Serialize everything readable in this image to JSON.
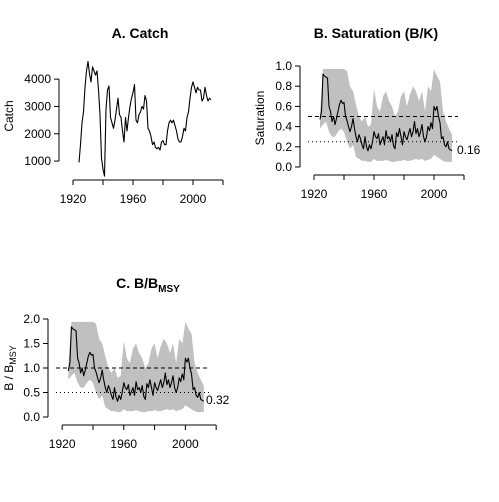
{
  "chart_data": [
    {
      "id": "A",
      "type": "line",
      "title": "A. Catch",
      "xlabel": "",
      "ylabel": "Catch",
      "xlim": [
        1916,
        2016
      ],
      "ylim": [
        600,
        4700
      ],
      "xticks": [
        1920,
        1960,
        2000
      ],
      "yticks": [
        1000,
        2000,
        3000,
        4000
      ],
      "series": [
        {
          "x": [
            1924,
            1925,
            1926,
            1927,
            1928,
            1929,
            1930,
            1931,
            1932,
            1933,
            1934,
            1935,
            1936,
            1937,
            1938,
            1939,
            1940,
            1941,
            1942,
            1943,
            1944,
            1945,
            1946,
            1947,
            1948,
            1949,
            1950,
            1951,
            1952,
            1953,
            1954,
            1955,
            1956,
            1957,
            1958,
            1959,
            1960,
            1961,
            1962,
            1963,
            1964,
            1965,
            1966,
            1967,
            1968,
            1969,
            1970,
            1971,
            1972,
            1973,
            1974,
            1975,
            1976,
            1977,
            1978,
            1979,
            1980,
            1981,
            1982,
            1983,
            1984,
            1985,
            1986,
            1987,
            1988,
            1989,
            1990,
            1991,
            1992,
            1993,
            1994,
            1995,
            1996,
            1997,
            1998,
            1999,
            2000,
            2001,
            2002,
            2003,
            2004,
            2005,
            2006,
            2007,
            2008,
            2009,
            2010,
            2011,
            2012
          ],
          "values": [
            950,
            1600,
            2400,
            2800,
            3700,
            4300,
            4650,
            4200,
            3900,
            4450,
            4300,
            4150,
            4300,
            3600,
            2700,
            1100,
            700,
            450,
            2900,
            3600,
            3750,
            2600,
            2400,
            2200,
            2500,
            2900,
            3300,
            2700,
            2600,
            2100,
            1700,
            2600,
            2100,
            2600,
            3000,
            3300,
            3500,
            3800,
            2500,
            2400,
            2700,
            2800,
            3000,
            2900,
            3400,
            3200,
            2200,
            2100,
            1900,
            1600,
            1700,
            1500,
            1450,
            1500,
            1400,
            1700,
            1750,
            1600,
            1600,
            2100,
            2400,
            2500,
            2400,
            2500,
            2300,
            2100,
            1800,
            1700,
            1700,
            1900,
            2200,
            2100,
            2600,
            2800,
            3300,
            3700,
            3900,
            3700,
            3500,
            3700,
            3600,
            3600,
            3200,
            3300,
            3700,
            3400,
            3200,
            3300,
            3250
          ]
        }
      ]
    },
    {
      "id": "B",
      "type": "line",
      "title": "B. Saturation (B/K)",
      "xlabel": "",
      "ylabel": "Saturation",
      "xlim": [
        1916,
        2016
      ],
      "ylim": [
        0,
        1
      ],
      "xticks": [
        1920,
        1960,
        2000
      ],
      "yticks": [
        0.0,
        0.2,
        0.4,
        0.6,
        0.8,
        1.0
      ],
      "hlines": [
        {
          "y": 0.5,
          "style": "dashed"
        },
        {
          "y": 0.25,
          "style": "dotted"
        }
      ],
      "annotation": "0.16",
      "series": [
        {
          "x": [
            1924,
            1925,
            1926,
            1927,
            1928,
            1929,
            1930,
            1931,
            1932,
            1933,
            1934,
            1935,
            1936,
            1937,
            1938,
            1939,
            1940,
            1941,
            1942,
            1943,
            1944,
            1945,
            1946,
            1947,
            1948,
            1949,
            1950,
            1951,
            1952,
            1953,
            1954,
            1955,
            1956,
            1957,
            1958,
            1959,
            1960,
            1961,
            1962,
            1963,
            1964,
            1965,
            1966,
            1967,
            1968,
            1969,
            1970,
            1971,
            1972,
            1973,
            1974,
            1975,
            1976,
            1977,
            1978,
            1979,
            1980,
            1981,
            1982,
            1983,
            1984,
            1985,
            1986,
            1987,
            1988,
            1989,
            1990,
            1991,
            1992,
            1993,
            1994,
            1995,
            1996,
            1997,
            1998,
            1999,
            2000,
            2001,
            2002,
            2003,
            2004,
            2005,
            2006,
            2007,
            2008,
            2009,
            2010,
            2011,
            2012
          ],
          "values": [
            0.47,
            0.55,
            0.92,
            0.9,
            0.89,
            0.88,
            0.6,
            0.55,
            0.45,
            0.5,
            0.42,
            0.48,
            0.55,
            0.62,
            0.66,
            0.63,
            0.64,
            0.5,
            0.46,
            0.4,
            0.35,
            0.4,
            0.48,
            0.38,
            0.3,
            0.25,
            0.32,
            0.28,
            0.22,
            0.18,
            0.3,
            0.2,
            0.16,
            0.22,
            0.18,
            0.25,
            0.35,
            0.3,
            0.28,
            0.33,
            0.22,
            0.26,
            0.3,
            0.22,
            0.36,
            0.28,
            0.3,
            0.25,
            0.32,
            0.21,
            0.18,
            0.34,
            0.3,
            0.38,
            0.3,
            0.22,
            0.35,
            0.3,
            0.27,
            0.33,
            0.38,
            0.3,
            0.35,
            0.45,
            0.33,
            0.38,
            0.3,
            0.35,
            0.42,
            0.3,
            0.25,
            0.3,
            0.4,
            0.36,
            0.44,
            0.38,
            0.6,
            0.56,
            0.6,
            0.5,
            0.44,
            0.28,
            0.3,
            0.22,
            0.2,
            0.25,
            0.18,
            0.17,
            0.16
          ]
        }
      ],
      "band": {
        "x": [
          1924,
          1926,
          1928,
          1930,
          1932,
          1934,
          1936,
          1938,
          1940,
          1942,
          1944,
          1946,
          1948,
          1950,
          1952,
          1954,
          1956,
          1958,
          1960,
          1962,
          1964,
          1966,
          1968,
          1970,
          1972,
          1974,
          1976,
          1978,
          1980,
          1982,
          1984,
          1986,
          1988,
          1990,
          1992,
          1994,
          1996,
          1998,
          2000,
          2002,
          2004,
          2006,
          2008,
          2010,
          2012
        ],
        "lower": [
          0.38,
          0.42,
          0.45,
          0.35,
          0.3,
          0.3,
          0.35,
          0.38,
          0.35,
          0.25,
          0.18,
          0.22,
          0.1,
          0.08,
          0.06,
          0.06,
          0.05,
          0.05,
          0.08,
          0.06,
          0.06,
          0.06,
          0.07,
          0.06,
          0.05,
          0.05,
          0.06,
          0.06,
          0.07,
          0.06,
          0.06,
          0.07,
          0.08,
          0.07,
          0.08,
          0.06,
          0.07,
          0.08,
          0.12,
          0.1,
          0.08,
          0.06,
          0.05,
          0.05,
          0.05
        ],
        "upper": [
          0.52,
          0.97,
          0.97,
          0.97,
          0.97,
          0.97,
          0.97,
          0.97,
          0.97,
          0.95,
          0.8,
          0.75,
          0.62,
          0.5,
          0.45,
          0.5,
          0.4,
          0.42,
          0.78,
          0.6,
          0.55,
          0.7,
          0.75,
          0.65,
          0.6,
          0.5,
          0.55,
          0.7,
          0.75,
          0.6,
          0.72,
          0.8,
          0.75,
          0.65,
          0.75,
          0.55,
          0.8,
          0.75,
          0.97,
          0.9,
          0.85,
          0.55,
          0.45,
          0.38,
          0.32
        ]
      }
    },
    {
      "id": "C",
      "type": "line",
      "title_main": "C. B/B",
      "title_sub": "MSY",
      "xlabel": "",
      "ylabel_main": "B / B",
      "ylabel_sub": "MSY",
      "xlim": [
        1916,
        2016
      ],
      "ylim": [
        0,
        2
      ],
      "xticks": [
        1920,
        1960,
        2000
      ],
      "yticks": [
        0.0,
        0.5,
        1.0,
        1.5,
        2.0
      ],
      "hlines": [
        {
          "y": 1.0,
          "style": "dashed"
        },
        {
          "y": 0.5,
          "style": "dotted"
        }
      ],
      "annotation": "0.32",
      "series": [
        {
          "x": [
            1924,
            1925,
            1926,
            1927,
            1928,
            1929,
            1930,
            1931,
            1932,
            1933,
            1934,
            1935,
            1936,
            1937,
            1938,
            1939,
            1940,
            1941,
            1942,
            1943,
            1944,
            1945,
            1946,
            1947,
            1948,
            1949,
            1950,
            1951,
            1952,
            1953,
            1954,
            1955,
            1956,
            1957,
            1958,
            1959,
            1960,
            1961,
            1962,
            1963,
            1964,
            1965,
            1966,
            1967,
            1968,
            1969,
            1970,
            1971,
            1972,
            1973,
            1974,
            1975,
            1976,
            1977,
            1978,
            1979,
            1980,
            1981,
            1982,
            1983,
            1984,
            1985,
            1986,
            1987,
            1988,
            1989,
            1990,
            1991,
            1992,
            1993,
            1994,
            1995,
            1996,
            1997,
            1998,
            1999,
            2000,
            2001,
            2002,
            2003,
            2004,
            2005,
            2006,
            2007,
            2008,
            2009,
            2010,
            2011,
            2012
          ],
          "values": [
            0.94,
            1.1,
            1.84,
            1.8,
            1.78,
            1.76,
            1.2,
            1.1,
            0.9,
            1.0,
            0.84,
            0.96,
            1.1,
            1.24,
            1.32,
            1.26,
            1.28,
            1.0,
            0.92,
            0.8,
            0.7,
            0.8,
            0.96,
            0.76,
            0.6,
            0.5,
            0.64,
            0.56,
            0.44,
            0.36,
            0.6,
            0.4,
            0.32,
            0.44,
            0.36,
            0.5,
            0.7,
            0.6,
            0.56,
            0.66,
            0.44,
            0.52,
            0.6,
            0.44,
            0.72,
            0.56,
            0.6,
            0.5,
            0.64,
            0.42,
            0.36,
            0.68,
            0.6,
            0.76,
            0.6,
            0.44,
            0.7,
            0.6,
            0.54,
            0.66,
            0.76,
            0.6,
            0.7,
            0.9,
            0.66,
            0.76,
            0.6,
            0.7,
            0.84,
            0.6,
            0.5,
            0.6,
            0.8,
            0.72,
            0.88,
            0.76,
            1.2,
            1.12,
            1.2,
            1.0,
            0.88,
            0.56,
            0.6,
            0.44,
            0.4,
            0.5,
            0.36,
            0.34,
            0.32
          ]
        }
      ],
      "band": {
        "x": [
          1924,
          1926,
          1928,
          1930,
          1932,
          1934,
          1936,
          1938,
          1940,
          1942,
          1944,
          1946,
          1948,
          1950,
          1952,
          1954,
          1956,
          1958,
          1960,
          1962,
          1964,
          1966,
          1968,
          1970,
          1972,
          1974,
          1976,
          1978,
          1980,
          1982,
          1984,
          1986,
          1988,
          1990,
          1992,
          1994,
          1996,
          1998,
          2000,
          2002,
          2004,
          2006,
          2008,
          2010,
          2012
        ],
        "lower": [
          0.76,
          0.84,
          0.9,
          0.7,
          0.6,
          0.6,
          0.7,
          0.76,
          0.7,
          0.5,
          0.36,
          0.44,
          0.2,
          0.16,
          0.12,
          0.12,
          0.1,
          0.1,
          0.16,
          0.12,
          0.12,
          0.12,
          0.14,
          0.12,
          0.1,
          0.1,
          0.12,
          0.12,
          0.14,
          0.12,
          0.12,
          0.14,
          0.16,
          0.14,
          0.16,
          0.12,
          0.14,
          0.16,
          0.24,
          0.2,
          0.16,
          0.12,
          0.1,
          0.1,
          0.1
        ],
        "upper": [
          1.04,
          1.94,
          1.94,
          1.94,
          1.94,
          1.94,
          1.94,
          1.94,
          1.94,
          1.9,
          1.6,
          1.5,
          1.24,
          1.0,
          0.9,
          1.0,
          0.8,
          0.84,
          1.56,
          1.2,
          1.1,
          1.4,
          1.5,
          1.3,
          1.2,
          1.0,
          1.1,
          1.4,
          1.5,
          1.2,
          1.44,
          1.6,
          1.5,
          1.3,
          1.5,
          1.1,
          1.6,
          1.5,
          1.94,
          1.8,
          1.7,
          1.1,
          0.9,
          0.76,
          0.64
        ]
      }
    }
  ]
}
